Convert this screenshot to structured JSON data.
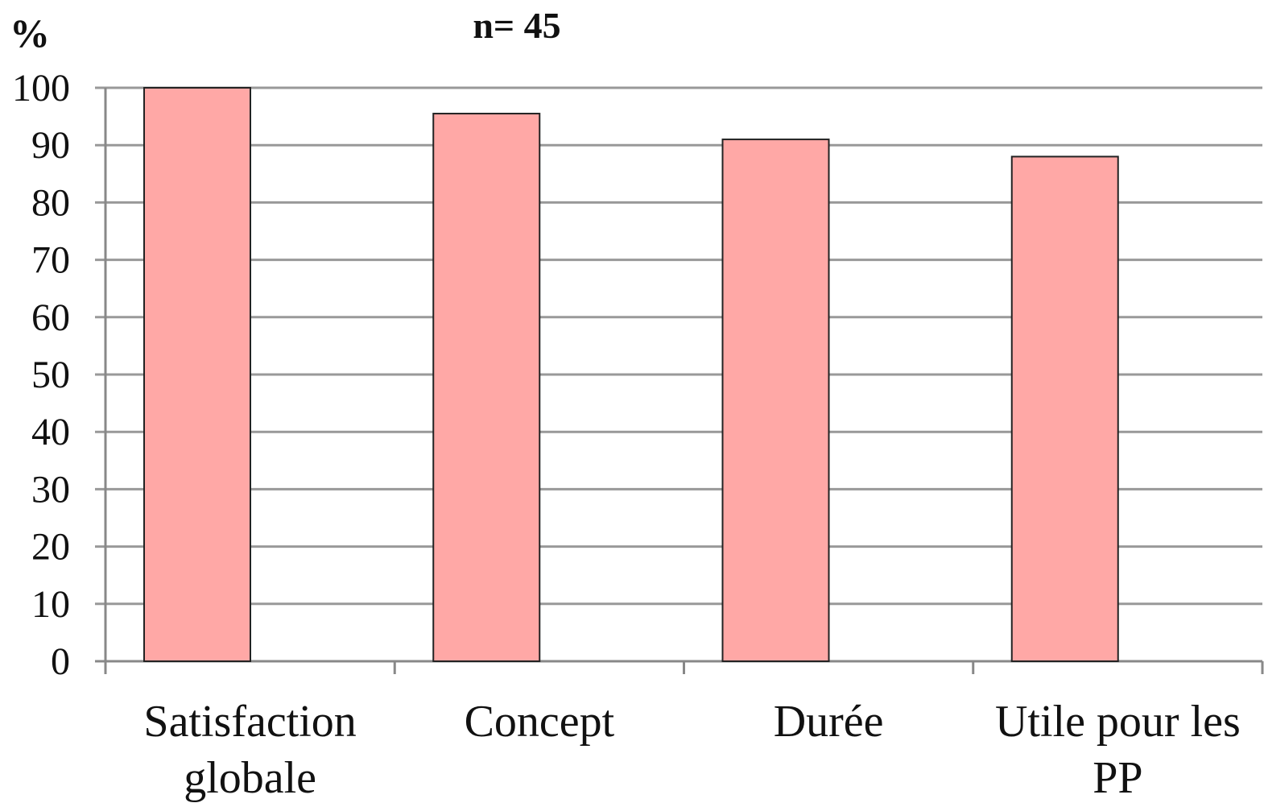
{
  "chart_data": {
    "type": "bar",
    "title": "n= 45",
    "ylabel": "%",
    "xlabel": "",
    "categories": [
      [
        "Satisfaction",
        "globale"
      ],
      [
        "Concept"
      ],
      [
        "Durée"
      ],
      [
        "Utile pour les",
        "PP"
      ]
    ],
    "values": [
      100,
      95.5,
      91,
      88
    ],
    "ylim": [
      0,
      100
    ],
    "yticks": [
      0,
      10,
      20,
      30,
      40,
      50,
      60,
      70,
      80,
      90,
      100
    ],
    "grid": true,
    "legend": "none",
    "colors": {
      "bar_fill": "#ffa8a6",
      "bar_stroke": "#222222",
      "grid": "#999999",
      "axis": "#888888"
    }
  }
}
